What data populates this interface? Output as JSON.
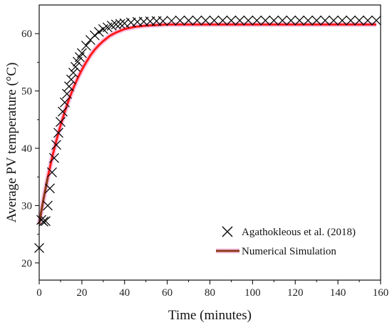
{
  "chart_data": {
    "type": "line",
    "xlabel": "Time (minutes)",
    "ylabel": "Average PV temperature (°C)",
    "xlim": [
      0,
      160
    ],
    "ylim": [
      17,
      65
    ],
    "x_ticks": [
      "0",
      "20",
      "40",
      "60",
      "80",
      "100",
      "120",
      "140",
      "160"
    ],
    "y_ticks": [
      "20",
      "30",
      "40",
      "50",
      "60"
    ],
    "grid": false,
    "legend_position": "bottom-right",
    "series": [
      {
        "name": "Agathokleous et al. (2018)",
        "marker": "x",
        "color": "#000000",
        "x": [
          0,
          1,
          2,
          3,
          4,
          5,
          6,
          7,
          8,
          9,
          10,
          11,
          12,
          13,
          14,
          15,
          16,
          17,
          18,
          19,
          20,
          22,
          24,
          26,
          28,
          30,
          32,
          34,
          36,
          38,
          40,
          43,
          46,
          49,
          52,
          55,
          58,
          62,
          66,
          70,
          74,
          78,
          82,
          86,
          90,
          94,
          98,
          102,
          106,
          110,
          114,
          118,
          122,
          126,
          130,
          134,
          138,
          142,
          146,
          150,
          154,
          158
        ],
        "y": [
          22.6,
          27.5,
          27.2,
          27.3,
          30.0,
          33.0,
          35.8,
          38.3,
          40.6,
          42.7,
          44.6,
          46.4,
          48.0,
          49.5,
          50.8,
          52.0,
          53.2,
          54.2,
          55.1,
          55.9,
          56.6,
          57.9,
          58.9,
          59.7,
          60.3,
          60.8,
          61.1,
          61.4,
          61.6,
          61.7,
          61.8,
          61.95,
          62.05,
          62.1,
          62.15,
          62.2,
          62.2,
          62.25,
          62.3,
          62.3,
          62.3,
          62.3,
          62.3,
          62.3,
          62.3,
          62.3,
          62.3,
          62.3,
          62.3,
          62.3,
          62.3,
          62.3,
          62.3,
          62.3,
          62.3,
          62.3,
          62.3,
          62.3,
          62.3,
          62.3,
          62.3,
          62.3
        ]
      },
      {
        "name": "Numerical Simulation",
        "color": "#ff1a1a",
        "color_early": "#8b3a1a",
        "x": [
          0,
          1,
          2,
          3,
          4,
          5,
          6,
          8,
          10,
          12,
          14,
          16,
          18,
          20,
          22,
          24,
          26,
          28,
          30,
          33,
          36,
          40,
          45,
          50,
          55,
          60,
          70,
          80,
          90,
          100,
          120,
          140,
          158
        ],
        "y": [
          26.8,
          29.0,
          31.1,
          33.0,
          34.9,
          36.6,
          38.3,
          41.3,
          44.0,
          46.4,
          48.6,
          50.5,
          52.2,
          53.7,
          55.0,
          56.2,
          57.2,
          58.0,
          58.7,
          59.6,
          60.2,
          60.8,
          61.2,
          61.4,
          61.5,
          61.6,
          61.6,
          61.6,
          61.6,
          61.6,
          61.6,
          61.6,
          61.6
        ]
      }
    ]
  }
}
